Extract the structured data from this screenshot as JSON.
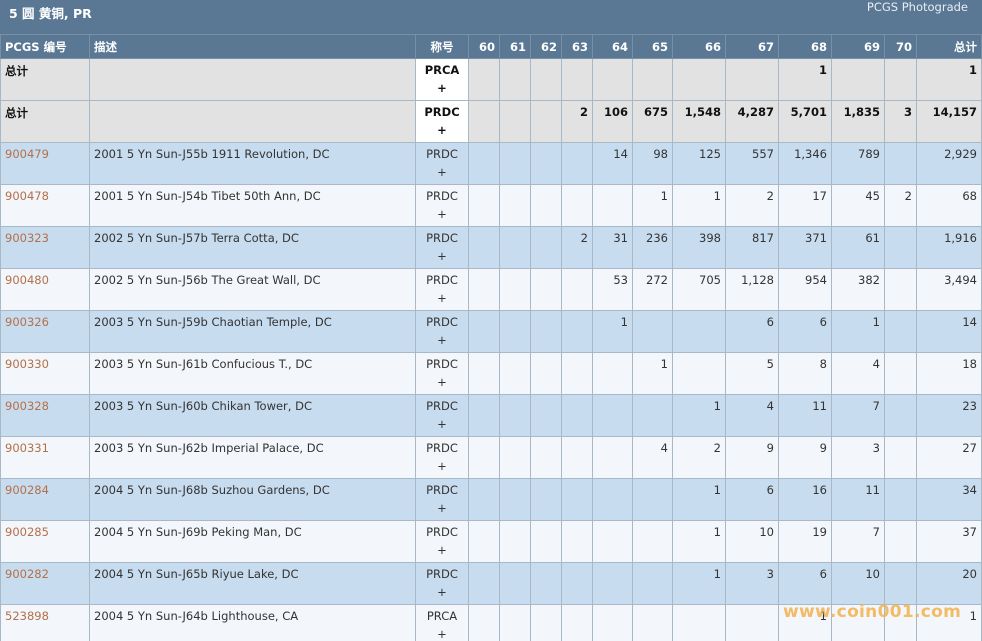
{
  "header": {
    "title": "5 圆 黄铜, PR",
    "photograde_link": "PCGS Photograde"
  },
  "columns": [
    "PCGS 编号",
    "描述",
    "称号",
    "60",
    "61",
    "62",
    "63",
    "64",
    "65",
    "66",
    "67",
    "68",
    "69",
    "70",
    "总计"
  ],
  "rows": [
    {
      "code": "总计",
      "desc": "",
      "desg": "PRCA",
      "plus": "+",
      "g60": "",
      "g61": "",
      "g62": "",
      "g63": "",
      "g64": "",
      "g65": "",
      "g66": "",
      "g67": "",
      "g68": "1",
      "g69": "",
      "g70": "",
      "total": "1"
    },
    {
      "code": "总计",
      "desc": "",
      "desg": "PRDC",
      "plus": "+",
      "g60": "",
      "g61": "",
      "g62": "",
      "g63": "2",
      "g64": "106",
      "g65": "675",
      "g66": "1,548",
      "g67": "4,287",
      "g68": "5,701",
      "g69": "1,835",
      "g70": "3",
      "total": "14,157"
    },
    {
      "code": "900479",
      "desc": "2001 5 Yn Sun-J55b 1911 Revolution, DC",
      "desg": "PRDC",
      "plus": "+",
      "g60": "",
      "g61": "",
      "g62": "",
      "g63": "",
      "g64": "14",
      "g65": "98",
      "g66": "125",
      "g67": "557",
      "g68": "1,346",
      "g69": "789",
      "g70": "",
      "total": "2,929"
    },
    {
      "code": "900478",
      "desc": "2001 5 Yn Sun-J54b Tibet 50th Ann, DC",
      "desg": "PRDC",
      "plus": "+",
      "g60": "",
      "g61": "",
      "g62": "",
      "g63": "",
      "g64": "",
      "g65": "1",
      "g66": "1",
      "g67": "2",
      "g68": "17",
      "g69": "45",
      "g70": "2",
      "total": "68"
    },
    {
      "code": "900323",
      "desc": "2002 5 Yn Sun-J57b Terra Cotta, DC",
      "desg": "PRDC",
      "plus": "+",
      "g60": "",
      "g61": "",
      "g62": "",
      "g63": "2",
      "g64": "31",
      "g65": "236",
      "g66": "398",
      "g67": "817",
      "g68": "371",
      "g69": "61",
      "g70": "",
      "total": "1,916"
    },
    {
      "code": "900480",
      "desc": "2002 5 Yn Sun-J56b The Great Wall, DC",
      "desg": "PRDC",
      "plus": "+",
      "g60": "",
      "g61": "",
      "g62": "",
      "g63": "",
      "g64": "53",
      "g65": "272",
      "g66": "705",
      "g67": "1,128",
      "g68": "954",
      "g69": "382",
      "g70": "",
      "total": "3,494"
    },
    {
      "code": "900326",
      "desc": "2003 5 Yn Sun-J59b Chaotian Temple, DC",
      "desg": "PRDC",
      "plus": "+",
      "g60": "",
      "g61": "",
      "g62": "",
      "g63": "",
      "g64": "1",
      "g65": "",
      "g66": "",
      "g67": "6",
      "g68": "6",
      "g69": "1",
      "g70": "",
      "total": "14"
    },
    {
      "code": "900330",
      "desc": "2003 5 Yn Sun-J61b Confucious T., DC",
      "desg": "PRDC",
      "plus": "+",
      "g60": "",
      "g61": "",
      "g62": "",
      "g63": "",
      "g64": "",
      "g65": "1",
      "g66": "",
      "g67": "5",
      "g68": "8",
      "g69": "4",
      "g70": "",
      "total": "18"
    },
    {
      "code": "900328",
      "desc": "2003 5 Yn Sun-J60b Chikan Tower, DC",
      "desg": "PRDC",
      "plus": "+",
      "g60": "",
      "g61": "",
      "g62": "",
      "g63": "",
      "g64": "",
      "g65": "",
      "g66": "1",
      "g67": "4",
      "g68": "11",
      "g69": "7",
      "g70": "",
      "total": "23"
    },
    {
      "code": "900331",
      "desc": "2003 5 Yn Sun-J62b Imperial Palace, DC",
      "desg": "PRDC",
      "plus": "+",
      "g60": "",
      "g61": "",
      "g62": "",
      "g63": "",
      "g64": "",
      "g65": "4",
      "g66": "2",
      "g67": "9",
      "g68": "9",
      "g69": "3",
      "g70": "",
      "total": "27"
    },
    {
      "code": "900284",
      "desc": "2004 5 Yn Sun-J68b Suzhou Gardens, DC",
      "desg": "PRDC",
      "plus": "+",
      "g60": "",
      "g61": "",
      "g62": "",
      "g63": "",
      "g64": "",
      "g65": "",
      "g66": "1",
      "g67": "6",
      "g68": "16",
      "g69": "11",
      "g70": "",
      "total": "34"
    },
    {
      "code": "900285",
      "desc": "2004 5 Yn Sun-J69b Peking Man, DC",
      "desg": "PRDC",
      "plus": "+",
      "g60": "",
      "g61": "",
      "g62": "",
      "g63": "",
      "g64": "",
      "g65": "",
      "g66": "1",
      "g67": "10",
      "g68": "19",
      "g69": "7",
      "g70": "",
      "total": "37"
    },
    {
      "code": "900282",
      "desc": "2004 5 Yn Sun-J65b Riyue Lake, DC",
      "desg": "PRDC",
      "plus": "+",
      "g60": "",
      "g61": "",
      "g62": "",
      "g63": "",
      "g64": "",
      "g65": "",
      "g66": "1",
      "g67": "3",
      "g68": "6",
      "g69": "10",
      "g70": "",
      "total": "20"
    },
    {
      "code": "523898",
      "desc": "2004 5 Yn Sun-J64b Lighthouse, CA",
      "desg": "PRCA",
      "plus": "+",
      "g60": "",
      "g61": "",
      "g62": "",
      "g63": "",
      "g64": "",
      "g65": "",
      "g66": "",
      "g67": "",
      "g68": "1",
      "g69": "",
      "g70": "",
      "total": "1"
    }
  ],
  "watermark": "www.coin001.com"
}
